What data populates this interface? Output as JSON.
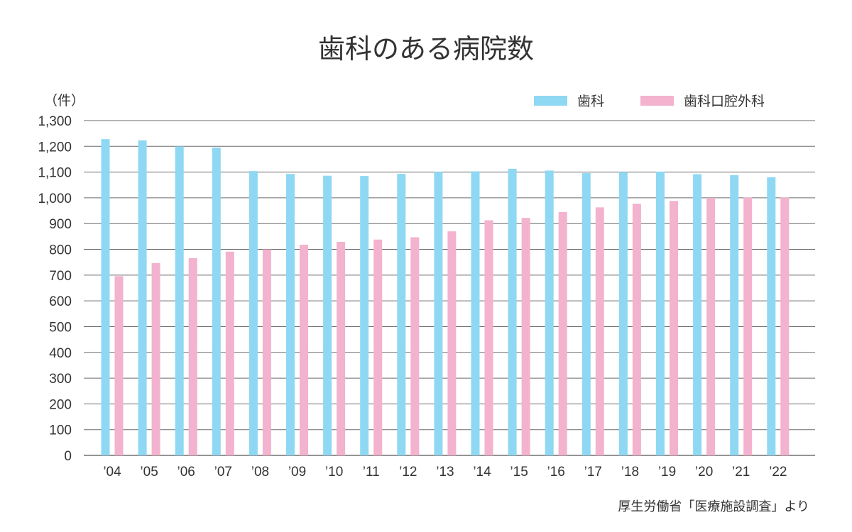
{
  "chart_data": {
    "type": "bar",
    "title": "歯科のある病院数",
    "unit_label": "（件）",
    "categories": [
      "’04",
      "’05",
      "’06",
      "’07",
      "’08",
      "’09",
      "’10",
      "’11",
      "’12",
      "’13",
      "’14",
      "’15",
      "’16",
      "’17",
      "’18",
      "’19",
      "’20",
      "’21",
      "’22"
    ],
    "series": [
      {
        "name": "歯科",
        "color": "#8fd8f3",
        "values": [
          1228,
          1223,
          1200,
          1195,
          1104,
          1093,
          1086,
          1085,
          1093,
          1101,
          1103,
          1113,
          1106,
          1096,
          1100,
          1102,
          1092,
          1088,
          1080
        ]
      },
      {
        "name": "歯科口腔外科",
        "color": "#f3b2cd",
        "values": [
          696,
          747,
          766,
          791,
          800,
          818,
          829,
          838,
          847,
          870,
          913,
          922,
          945,
          963,
          977,
          988,
          1000,
          1001,
          1001
        ]
      }
    ],
    "yticks": [
      "0",
      "100",
      "200",
      "300",
      "400",
      "500",
      "600",
      "700",
      "800",
      "900",
      "1,000",
      "1,100",
      "1,200",
      "1,300"
    ],
    "ylim": [
      0,
      1300
    ],
    "grid": true,
    "legend": "top-right",
    "source": "厚生労働省「医療施設調査」より"
  }
}
